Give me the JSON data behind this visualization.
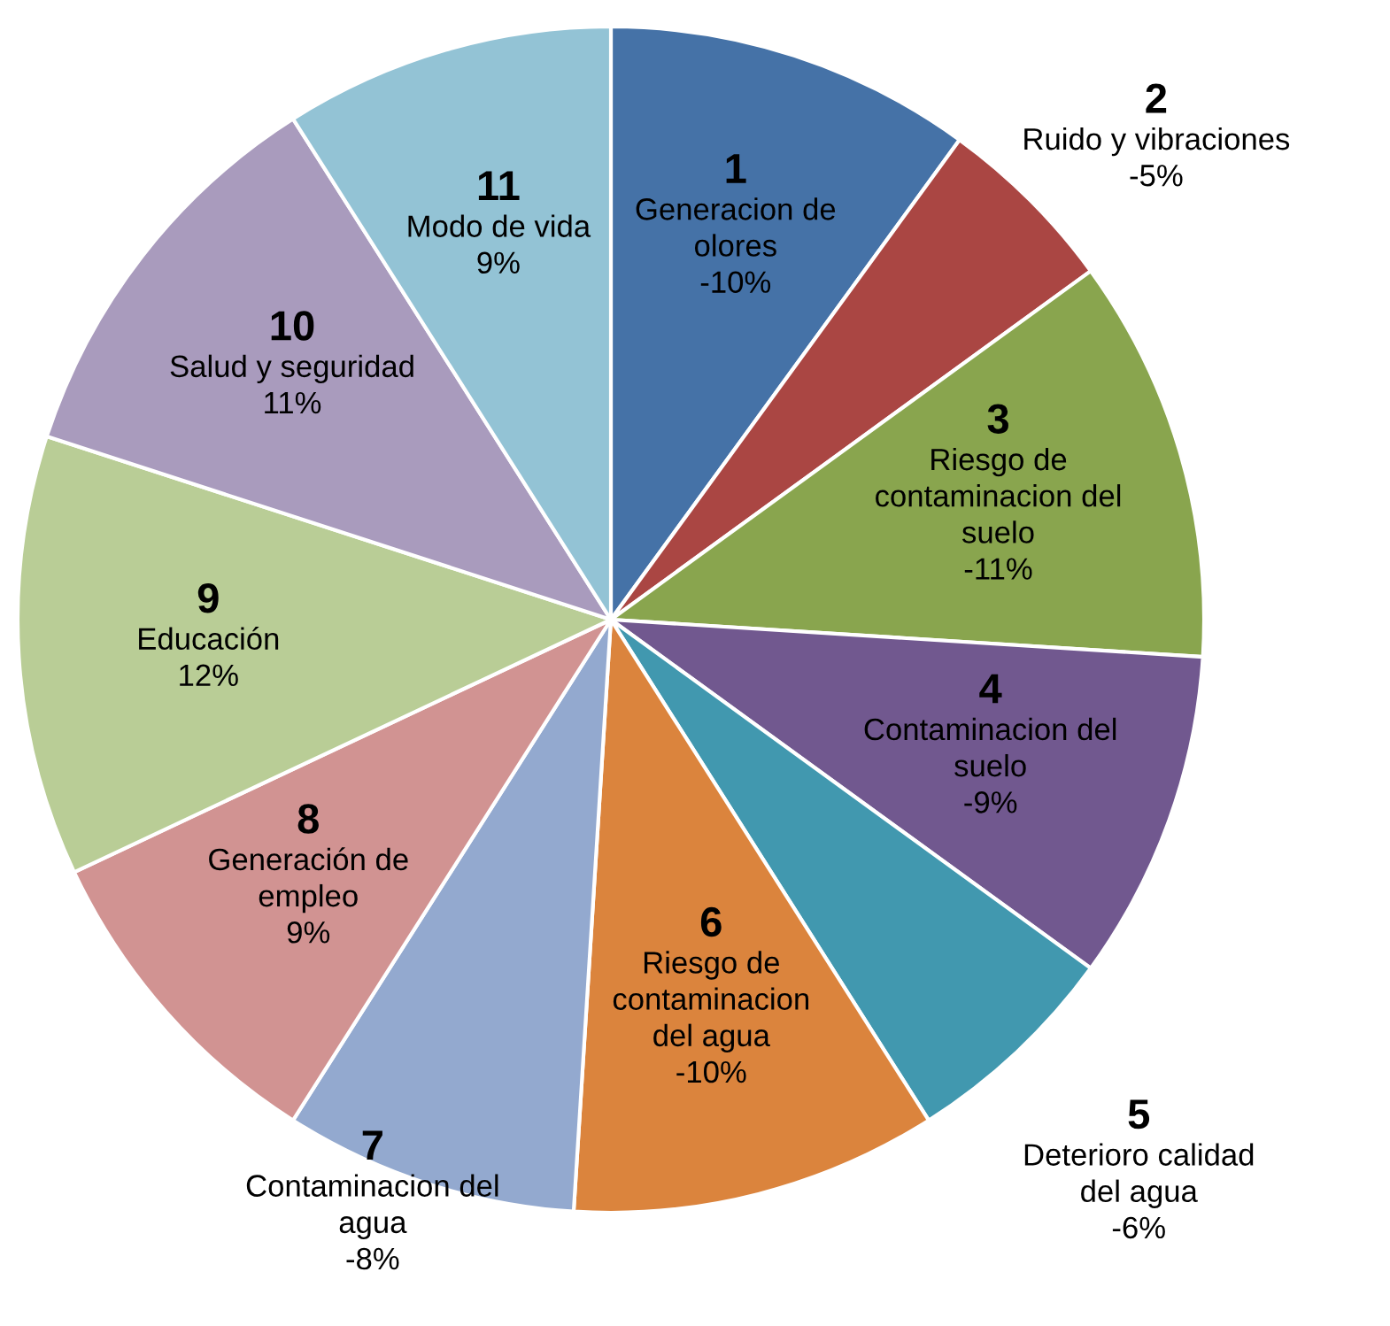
{
  "chart_data": {
    "type": "pie",
    "categories": [
      "1\nGeneracion de\nolores\n-10%",
      "2\nRuido y vibraciones\n-5%",
      "3\nRiesgo de\ncontaminacion del\nsuelo\n-11%",
      "4\nContaminacion del\nsuelo\n-9%",
      "5\nDeterioro calidad\ndel agua\n-6%",
      "6\nRiesgo de\ncontaminacion\ndel agua\n-10%",
      "7\nContaminacion del\nagua\n-8%",
      "8\nGeneración de\nempleo\n9%",
      "9\nEducación\n12%",
      "10\nSalud y seguridad\n11%",
      "11\nModo de vida\n9%"
    ],
    "values": [
      10,
      5,
      11,
      9,
      6,
      10,
      8,
      9,
      12,
      11,
      9
    ],
    "colors": [
      "#4572a7",
      "#aa4643",
      "#89a54e",
      "#71588f",
      "#4198af",
      "#db843d",
      "#93a9cf",
      "#d19392",
      "#b9cd96",
      "#a99bbd",
      "#93c3d5"
    ]
  }
}
